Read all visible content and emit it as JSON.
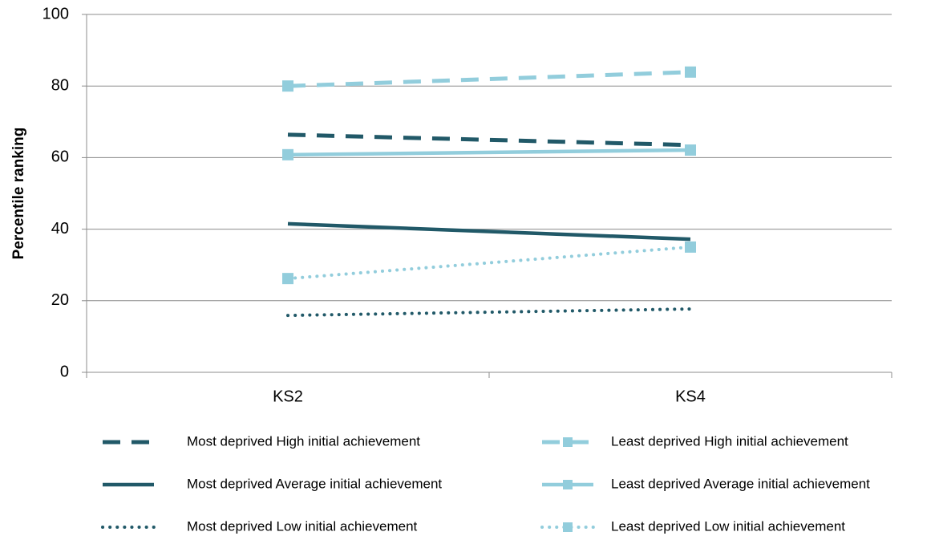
{
  "chart_data": {
    "type": "line",
    "y_label": "Percentile ranking",
    "categories": [
      "KS2",
      "KS4"
    ],
    "ylim": [
      0,
      100
    ],
    "yticks": [
      0,
      20,
      40,
      60,
      80,
      100
    ],
    "grid": true,
    "series": [
      {
        "name": "Most deprived High initial achievement",
        "color": "#215968",
        "style": "dashed",
        "values": [
          66.4,
          63.5
        ]
      },
      {
        "name": "Least deprived High initial achievement",
        "color": "#92cddc",
        "style": "dashed",
        "marker": "square",
        "values": [
          80.0,
          83.9
        ]
      },
      {
        "name": "Most deprived Average initial achievement",
        "color": "#215968",
        "style": "solid",
        "values": [
          41.5,
          37.2
        ]
      },
      {
        "name": "Least deprived Average initial achievement",
        "color": "#92cddc",
        "style": "solid",
        "marker": "square",
        "values": [
          60.8,
          62.1
        ]
      },
      {
        "name": "Most deprived Low initial achievement",
        "color": "#215968",
        "style": "dotted",
        "values": [
          15.9,
          17.7
        ]
      },
      {
        "name": "Least deprived Low initial achievement",
        "color": "#92cddc",
        "style": "dotted",
        "marker": "square",
        "values": [
          26.2,
          35.0
        ]
      }
    ]
  }
}
